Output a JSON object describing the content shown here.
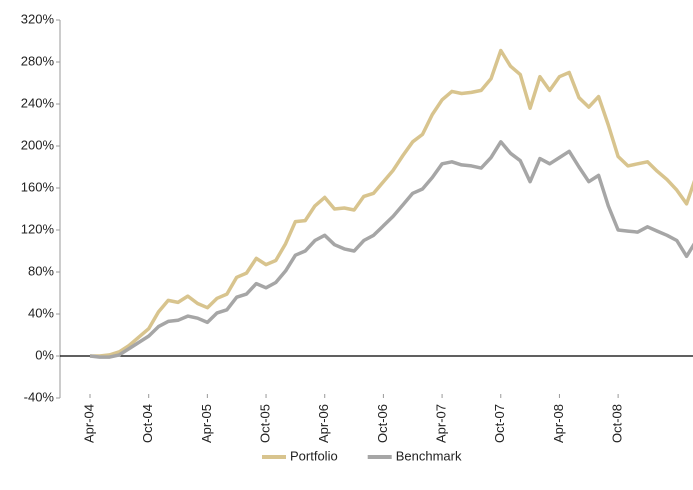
{
  "chart_data": {
    "type": "line",
    "categories": [
      "Apr-04",
      null,
      null,
      null,
      null,
      null,
      "Oct-04",
      null,
      null,
      null,
      null,
      null,
      "Apr-05",
      null,
      null,
      null,
      null,
      null,
      "Oct-05",
      null,
      null,
      null,
      null,
      null,
      "Apr-06",
      null,
      null,
      null,
      null,
      null,
      "Oct-06",
      null,
      null,
      null,
      null,
      null,
      "Apr-07",
      null,
      null,
      null,
      null,
      null,
      "Oct-07",
      null,
      null,
      null,
      null,
      null,
      "Apr-08",
      null,
      null,
      null,
      null,
      null,
      "Oct-08",
      null,
      null,
      null,
      null,
      null,
      null,
      null,
      null
    ],
    "series": [
      {
        "name": "Portfolio",
        "color": "#d8c48e",
        "values": [
          0,
          0,
          1,
          4,
          10,
          18,
          26,
          42,
          53,
          51,
          57,
          50,
          46,
          55,
          59,
          75,
          79,
          93,
          87,
          91,
          107,
          128,
          129,
          143,
          151,
          140,
          141,
          139,
          152,
          155,
          166,
          177,
          191,
          204,
          211,
          230,
          244,
          252,
          250,
          251,
          253,
          264,
          291,
          276,
          268,
          236,
          266,
          253,
          266,
          270,
          246,
          237,
          247,
          220,
          190,
          181,
          183,
          185,
          176,
          168,
          158,
          145,
          172
        ]
      },
      {
        "name": "Benchmark",
        "color": "#a6a6a6",
        "values": [
          0,
          -1,
          -1,
          1,
          7,
          13,
          19,
          28,
          33,
          34,
          38,
          36,
          32,
          41,
          44,
          56,
          59,
          69,
          65,
          70,
          81,
          96,
          100,
          110,
          115,
          106,
          102,
          100,
          110,
          115,
          124,
          133,
          144,
          155,
          159,
          170,
          183,
          185,
          182,
          181,
          179,
          189,
          204,
          193,
          186,
          166,
          188,
          183,
          189,
          195,
          180,
          166,
          172,
          143,
          120,
          119,
          118,
          123,
          119,
          115,
          110,
          95,
          110
        ]
      }
    ],
    "ylim": [
      -40,
      320
    ],
    "yticks": [
      {
        "value": -40,
        "label": "-40%"
      },
      {
        "value": 0,
        "label": "0%"
      },
      {
        "value": 40,
        "label": "40%"
      },
      {
        "value": 80,
        "label": "80%"
      },
      {
        "value": 120,
        "label": "120%"
      },
      {
        "value": 160,
        "label": "160%"
      },
      {
        "value": 200,
        "label": "200%"
      },
      {
        "value": 240,
        "label": "240%"
      },
      {
        "value": 280,
        "label": "280%"
      },
      {
        "value": 320,
        "label": "320%"
      }
    ],
    "legend": "bottom"
  }
}
